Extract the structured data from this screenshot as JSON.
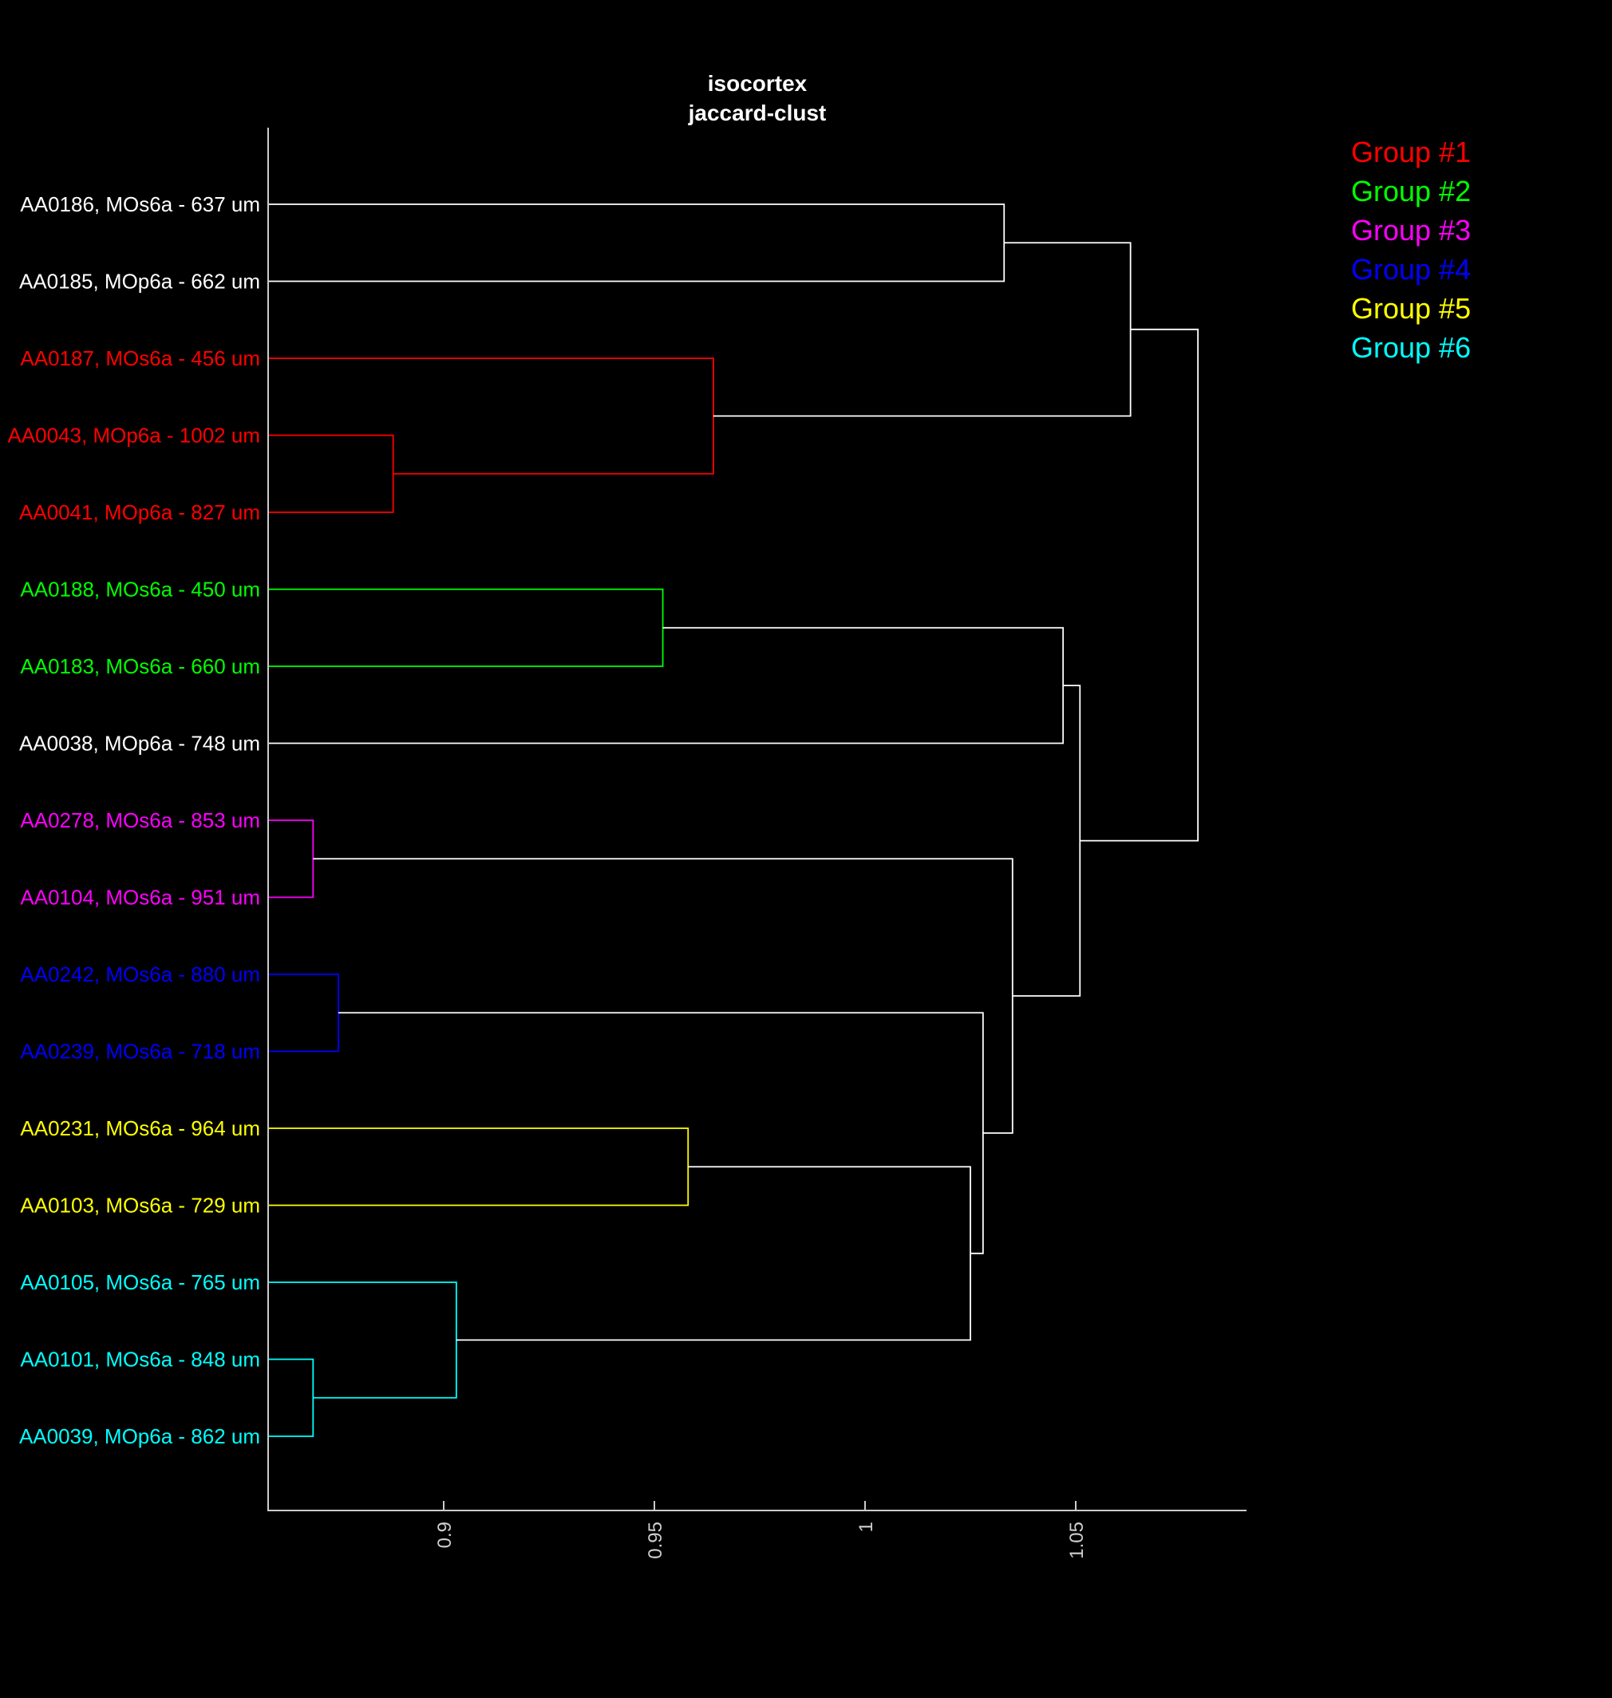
{
  "chart_data": {
    "type": "dendrogram",
    "title": [
      "isocortex",
      "jaccard-clust"
    ],
    "orientation": "leaves-left",
    "x_axis": {
      "ticks": [
        0.9,
        0.95,
        1,
        1.05
      ],
      "tick_labels": [
        "0.9",
        "0.95",
        "1",
        "1.05"
      ],
      "tick_label_rotation": -90,
      "range": [
        0.858,
        1.09
      ]
    },
    "leaves": [
      {
        "label": "AA0186, MOs6a - 637 um",
        "group": 0
      },
      {
        "label": "AA0185, MOp6a - 662 um",
        "group": 0
      },
      {
        "label": "AA0187, MOs6a - 456 um",
        "group": 1
      },
      {
        "label": "AA0043, MOp6a - 1002 um",
        "group": 1
      },
      {
        "label": "AA0041, MOp6a - 827 um",
        "group": 1
      },
      {
        "label": "AA0188, MOs6a - 450 um",
        "group": 2
      },
      {
        "label": "AA0183, MOs6a - 660 um",
        "group": 2
      },
      {
        "label": "AA0038, MOp6a - 748 um",
        "group": 0
      },
      {
        "label": "AA0278, MOs6a - 853 um",
        "group": 3
      },
      {
        "label": "AA0104, MOs6a - 951 um",
        "group": 3
      },
      {
        "label": "AA0242, MOs6a - 880 um",
        "group": 4
      },
      {
        "label": "AA0239, MOs6a - 718 um",
        "group": 4
      },
      {
        "label": "AA0231, MOs6a - 964 um",
        "group": 5
      },
      {
        "label": "AA0103, MOs6a - 729 um",
        "group": 5
      },
      {
        "label": "AA0105, MOs6a - 765 um",
        "group": 6
      },
      {
        "label": "AA0101, MOs6a - 848 um",
        "group": 6
      },
      {
        "label": "AA0039, MOp6a - 862 um",
        "group": 6
      }
    ],
    "merges": [
      {
        "a": 15,
        "b": 16,
        "height": 0.869,
        "group": 6
      },
      {
        "a": 14,
        "b": "m0",
        "height": 0.903,
        "group": 6
      },
      {
        "a": 3,
        "b": 4,
        "height": 0.888,
        "group": 1
      },
      {
        "a": 2,
        "b": "m2",
        "height": 0.964,
        "group": 1
      },
      {
        "a": 8,
        "b": 9,
        "height": 0.869,
        "group": 3
      },
      {
        "a": 10,
        "b": 11,
        "height": 0.875,
        "group": 4
      },
      {
        "a": 5,
        "b": 6,
        "height": 0.952,
        "group": 2
      },
      {
        "a": 12,
        "b": 13,
        "height": 0.958,
        "group": 5
      },
      {
        "a": "m7",
        "b": "m1",
        "height": 1.025,
        "group": 0
      },
      {
        "a": "m5",
        "b": "m8",
        "height": 1.028,
        "group": 0
      },
      {
        "a": 0,
        "b": 1,
        "height": 1.033,
        "group": 0
      },
      {
        "a": "m4",
        "b": "m9",
        "height": 1.035,
        "group": 0
      },
      {
        "a": "m6",
        "b": 7,
        "height": 1.047,
        "group": 0
      },
      {
        "a": "m12",
        "b": "m11",
        "height": 1.051,
        "group": 0
      },
      {
        "a": "m10",
        "b": "m3",
        "height": 1.063,
        "group": 0
      },
      {
        "a": "m14",
        "b": "m13",
        "height": 1.079,
        "group": 0
      }
    ],
    "legend": {
      "placement": "top-right",
      "entries": [
        {
          "label": "Group #1",
          "color": "#ff0000"
        },
        {
          "label": "Group #2",
          "color": "#00ff00"
        },
        {
          "label": "Group #3",
          "color": "#ff00ff"
        },
        {
          "label": "Group #4",
          "color": "#0000ff"
        },
        {
          "label": "Group #5",
          "color": "#ffff00"
        },
        {
          "label": "Group #6",
          "color": "#00ffff"
        }
      ]
    },
    "colors": {
      "background": "#000000",
      "unassigned": "#ffffff",
      "axis": "#cccccc",
      "groups": [
        "#ffffff",
        "#ff0000",
        "#00ff00",
        "#ff00ff",
        "#0000ff",
        "#ffff00",
        "#00ffff"
      ]
    }
  }
}
